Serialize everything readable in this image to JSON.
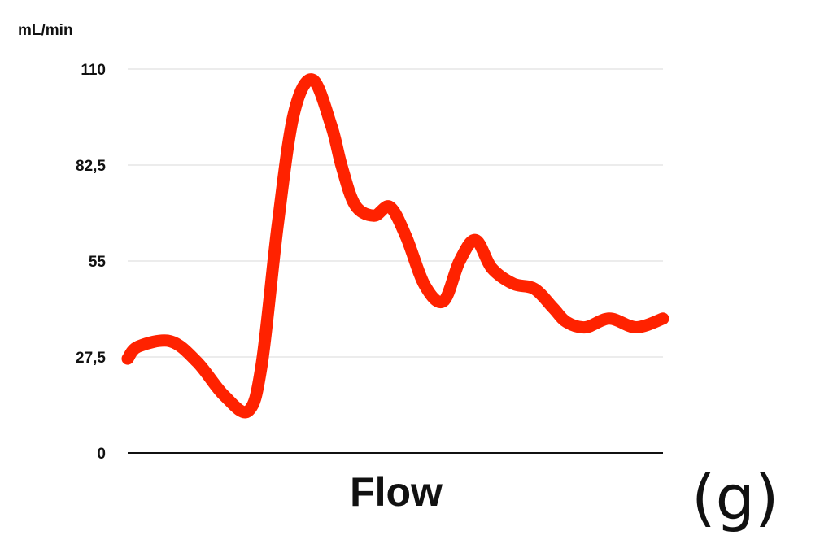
{
  "chart_data": {
    "type": "line",
    "ylabel": "mL/min",
    "xlabel": "Flow",
    "panel_label": "(g)",
    "ylim": [
      0,
      110
    ],
    "yticks": [
      0,
      27.5,
      55,
      82.5,
      110
    ],
    "ytick_labels": [
      "0",
      "27,5",
      "55",
      "82,5",
      "110"
    ],
    "grid": "horizontal",
    "series": [
      {
        "color": "#ff2200",
        "x": [
          0,
          0.02,
          0.08,
          0.13,
          0.18,
          0.225,
          0.25,
          0.28,
          0.31,
          0.345,
          0.38,
          0.4,
          0.425,
          0.46,
          0.49,
          0.52,
          0.555,
          0.59,
          0.62,
          0.65,
          0.68,
          0.72,
          0.76,
          0.795,
          0.82,
          0.855,
          0.9,
          0.95,
          1.0
        ],
        "y": [
          27,
          30.5,
          32,
          26,
          16.5,
          12,
          25,
          65,
          97,
          107,
          94,
          82,
          71,
          68,
          70.5,
          62,
          48,
          43.5,
          55,
          61,
          53,
          48.5,
          47,
          41.5,
          37.5,
          36,
          38.5,
          36,
          38.5
        ]
      }
    ]
  }
}
